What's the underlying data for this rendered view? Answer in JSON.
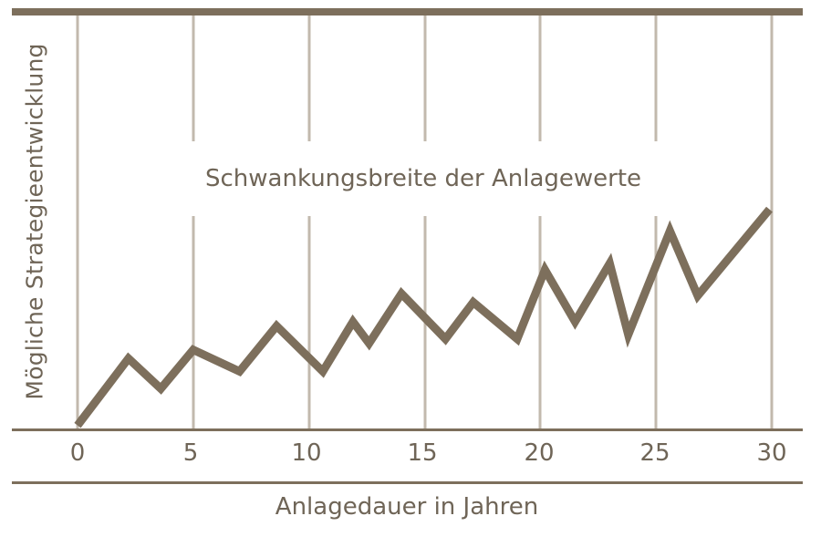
{
  "chart_data": {
    "type": "line",
    "title": "",
    "annotation": "Schwankungsbreite der Anlagewerte",
    "xlabel": "Anlagedauer in Jahren",
    "ylabel": "Mögliche Strategieentwicklung",
    "x_ticks": [
      "0",
      "5",
      "10",
      "15",
      "20",
      "25",
      "30"
    ],
    "xlim": [
      0,
      30
    ],
    "ylim": [
      0,
      100
    ],
    "grid": true,
    "legend": null,
    "series": [
      {
        "name": "Mögliche Strategieentwicklung",
        "color": "#7d6f5c",
        "x": [
          0,
          2.2,
          3.6,
          5.0,
          7.0,
          8.6,
          10.6,
          11.9,
          12.6,
          14.0,
          15.9,
          17.1,
          19.0,
          20.2,
          21.5,
          23.0,
          23.8,
          25.6,
          26.8,
          29.9
        ],
        "y": [
          1,
          32,
          18,
          36,
          26,
          47,
          26,
          49,
          39,
          62,
          41,
          58,
          41,
          73,
          49,
          76,
          43,
          91,
          61,
          101
        ]
      }
    ]
  },
  "colors": {
    "frame": "#7d6f5c",
    "grid": "#c2b9ad",
    "line": "#7d6f5c",
    "text": "#6f6557"
  }
}
